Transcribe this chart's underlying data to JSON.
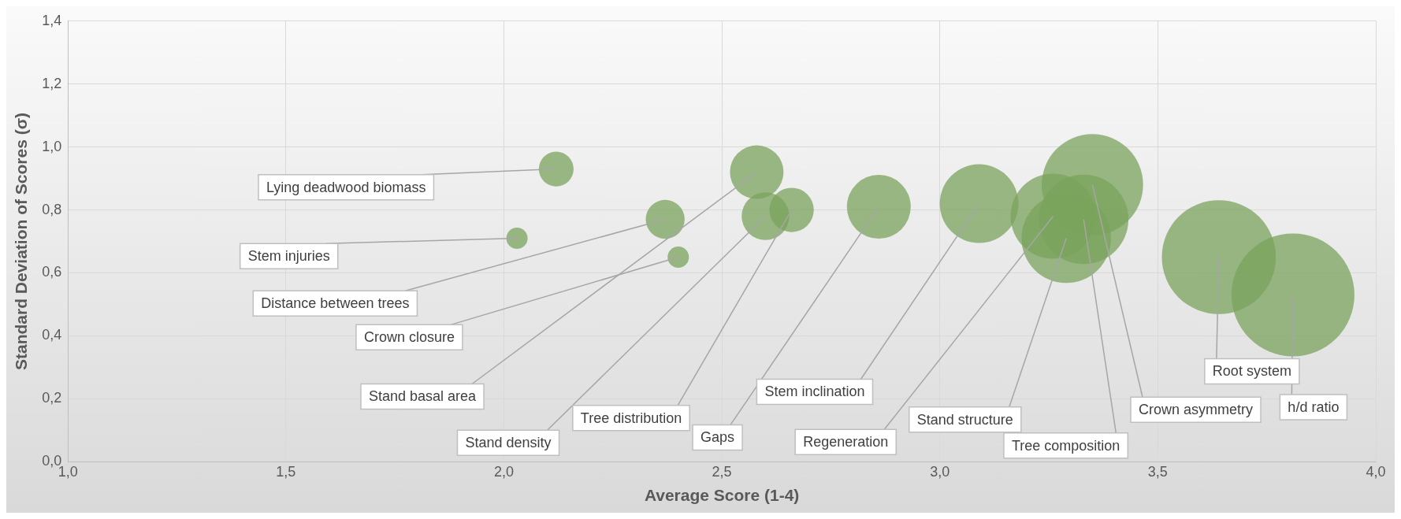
{
  "chart_data": {
    "type": "bubble",
    "xlabel": "Average Score (1-4)",
    "ylabel": "Standard Deviation of Scores (σ)",
    "x": [
      2.12,
      2.03,
      2.37,
      2.4,
      2.58,
      2.6,
      2.66,
      2.86,
      3.09,
      3.26,
      3.29,
      3.33,
      3.35,
      3.64,
      3.81
    ],
    "values": [
      0.93,
      0.71,
      0.77,
      0.65,
      0.92,
      0.78,
      0.8,
      0.81,
      0.82,
      0.78,
      0.71,
      0.77,
      0.88,
      0.65,
      0.53
    ],
    "sizes": [
      0.08,
      0.03,
      0.1,
      0.03,
      0.19,
      0.15,
      0.13,
      0.27,
      0.41,
      0.48,
      0.53,
      0.53,
      0.68,
      0.86,
      1
    ],
    "color": "#7aa35c",
    "xlim": [
      1,
      4
    ],
    "ylim": [
      0,
      1.4
    ],
    "xticks": [
      {
        "value": 1,
        "label": "1,0"
      },
      {
        "value": 1.5,
        "label": "1,5"
      },
      {
        "value": 2,
        "label": "2,0"
      },
      {
        "value": 2.5,
        "label": "2,5"
      },
      {
        "value": 3,
        "label": "3,0"
      },
      {
        "value": 3.5,
        "label": "3,5"
      },
      {
        "value": 4,
        "label": "4,0"
      }
    ],
    "yticks": [
      {
        "value": 0,
        "label": "0,0"
      },
      {
        "value": 0.2,
        "label": "0,2"
      },
      {
        "value": 0.4,
        "label": "0,4"
      },
      {
        "value": 0.6,
        "label": "0,6"
      },
      {
        "value": 0.8,
        "label": "0,8"
      },
      {
        "value": 1,
        "label": "1,0"
      },
      {
        "value": 1.2,
        "label": "1,2"
      },
      {
        "value": 1.4,
        "label": "1,4"
      }
    ],
    "grid": true,
    "legend": false,
    "annotations": [
      {
        "text": "Lying deadwood biomass",
        "x": 2.12,
        "y": 0.93
      },
      {
        "text": "Stem injuries",
        "x": 2.03,
        "y": 0.71
      },
      {
        "text": "Distance between trees",
        "x": 2.37,
        "y": 0.77
      },
      {
        "text": "Crown closure",
        "x": 2.4,
        "y": 0.65
      },
      {
        "text": "Stand basal area",
        "x": 2.58,
        "y": 0.92
      },
      {
        "text": "Stand density",
        "x": 2.6,
        "y": 0.78
      },
      {
        "text": "Tree distribution",
        "x": 2.66,
        "y": 0.8
      },
      {
        "text": "Gaps",
        "x": 2.86,
        "y": 0.81
      },
      {
        "text": "Stem inclination",
        "x": 3.09,
        "y": 0.82
      },
      {
        "text": "Regeneration",
        "x": 3.26,
        "y": 0.78
      },
      {
        "text": "Stand structure",
        "x": 3.29,
        "y": 0.71
      },
      {
        "text": "Tree composition",
        "x": 3.33,
        "y": 0.77
      },
      {
        "text": "Crown asymmetry",
        "x": 3.35,
        "y": 0.88
      },
      {
        "text": "Root system",
        "x": 3.64,
        "y": 0.65
      },
      {
        "text": "h/d ratio",
        "x": 3.81,
        "y": 0.53
      }
    ]
  }
}
